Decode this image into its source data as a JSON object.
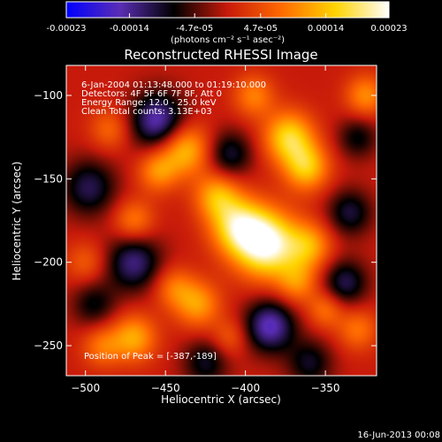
{
  "colorbar": {
    "tick_values": [
      -0.00023,
      -0.00014,
      -4.7e-05,
      4.7e-05,
      0.00014,
      0.00023
    ],
    "tick_labels": [
      "-0.00023",
      "-0.00014",
      "-4.7e-05",
      "4.7e-05",
      "0.00014",
      "0.00023"
    ],
    "range": [
      -0.00023,
      0.00023
    ],
    "units": "(photons cm⁻² s⁻¹ asec⁻²)",
    "colormap": "blue-purple-black-red-orange-yellow-white",
    "colors": [
      "#0000ff",
      "#5a2db4",
      "#000000",
      "#c81a0a",
      "#ff6a00",
      "#ffd400",
      "#ffffff"
    ]
  },
  "chart_data": {
    "type": "heatmap",
    "title": "Reconstructed RHESSI Image",
    "xlabel": "Heliocentric X (arcsec)",
    "ylabel": "Heliocentric Y (arcsec)",
    "xlim": [
      -512,
      -318
    ],
    "ylim": [
      -268,
      -82
    ],
    "x_ticks": [
      -500,
      -450,
      -400,
      -350
    ],
    "y_ticks": [
      -100,
      -150,
      -200,
      -250
    ],
    "info_lines": [
      "6-Jan-2004 01:13:48.000 to 01:19:10.000",
      "Detectors: 4F 5F 6F 7F 8F, Att 0",
      "Energy Range: 12.0 - 25.0 keV",
      "Clean     Total counts: 3.13E+03"
    ],
    "peak_label": "Position of Peak = [-387,-189]",
    "peak": {
      "x": -387,
      "y": -189
    },
    "value_range": [
      -0.00023,
      0.00023
    ],
    "blobs": [
      {
        "x": -387,
        "y": -189,
        "value": 0.00023,
        "sigma": 14
      },
      {
        "x": -405,
        "y": -178,
        "value": 0.00016,
        "sigma": 12
      },
      {
        "x": -373,
        "y": -125,
        "value": 0.00016,
        "sigma": 11
      },
      {
        "x": -362,
        "y": -143,
        "value": 0.00014,
        "sigma": 10
      },
      {
        "x": -360,
        "y": -190,
        "value": 0.00011,
        "sigma": 10
      },
      {
        "x": -368,
        "y": -212,
        "value": 9e-05,
        "sigma": 9
      },
      {
        "x": -350,
        "y": -228,
        "value": 8e-05,
        "sigma": 8
      },
      {
        "x": -438,
        "y": -132,
        "value": 0.00014,
        "sigma": 11
      },
      {
        "x": -455,
        "y": -145,
        "value": 0.0001,
        "sigma": 9
      },
      {
        "x": -418,
        "y": -160,
        "value": 0.00012,
        "sigma": 10
      },
      {
        "x": -470,
        "y": -175,
        "value": 9e-05,
        "sigma": 9
      },
      {
        "x": -430,
        "y": -225,
        "value": 0.00011,
        "sigma": 10
      },
      {
        "x": -445,
        "y": -215,
        "value": 8e-05,
        "sigma": 9
      },
      {
        "x": -470,
        "y": -245,
        "value": 0.00012,
        "sigma": 10
      },
      {
        "x": -490,
        "y": -250,
        "value": 8e-05,
        "sigma": 9
      },
      {
        "x": -325,
        "y": -100,
        "value": 0.0001,
        "sigma": 9
      },
      {
        "x": -330,
        "y": -240,
        "value": 8e-05,
        "sigma": 9
      },
      {
        "x": -395,
        "y": -100,
        "value": 9e-05,
        "sigma": 9
      },
      {
        "x": -485,
        "y": -120,
        "value": 7e-05,
        "sigma": 9
      },
      {
        "x": -500,
        "y": -200,
        "value": 6e-05,
        "sigma": 9
      },
      {
        "x": -410,
        "y": -245,
        "value": 6e-05,
        "sigma": 8
      },
      {
        "x": -455,
        "y": -115,
        "value": -0.00016,
        "sigma": 12
      },
      {
        "x": -470,
        "y": -200,
        "value": -0.00013,
        "sigma": 12
      },
      {
        "x": -498,
        "y": -155,
        "value": -0.00011,
        "sigma": 12
      },
      {
        "x": -410,
        "y": -135,
        "value": -0.0001,
        "sigma": 10
      },
      {
        "x": -385,
        "y": -238,
        "value": -0.00016,
        "sigma": 11
      },
      {
        "x": -335,
        "y": -170,
        "value": -0.0001,
        "sigma": 10
      },
      {
        "x": -338,
        "y": -212,
        "value": -0.00011,
        "sigma": 10
      },
      {
        "x": -425,
        "y": -260,
        "value": -9e-05,
        "sigma": 10
      },
      {
        "x": -330,
        "y": -125,
        "value": -8e-05,
        "sigma": 9
      },
      {
        "x": -495,
        "y": -225,
        "value": -8e-05,
        "sigma": 10
      },
      {
        "x": -360,
        "y": -260,
        "value": -9e-05,
        "sigma": 10
      }
    ]
  },
  "footer": {
    "date_label": "16-Jun-2013 00:08"
  }
}
